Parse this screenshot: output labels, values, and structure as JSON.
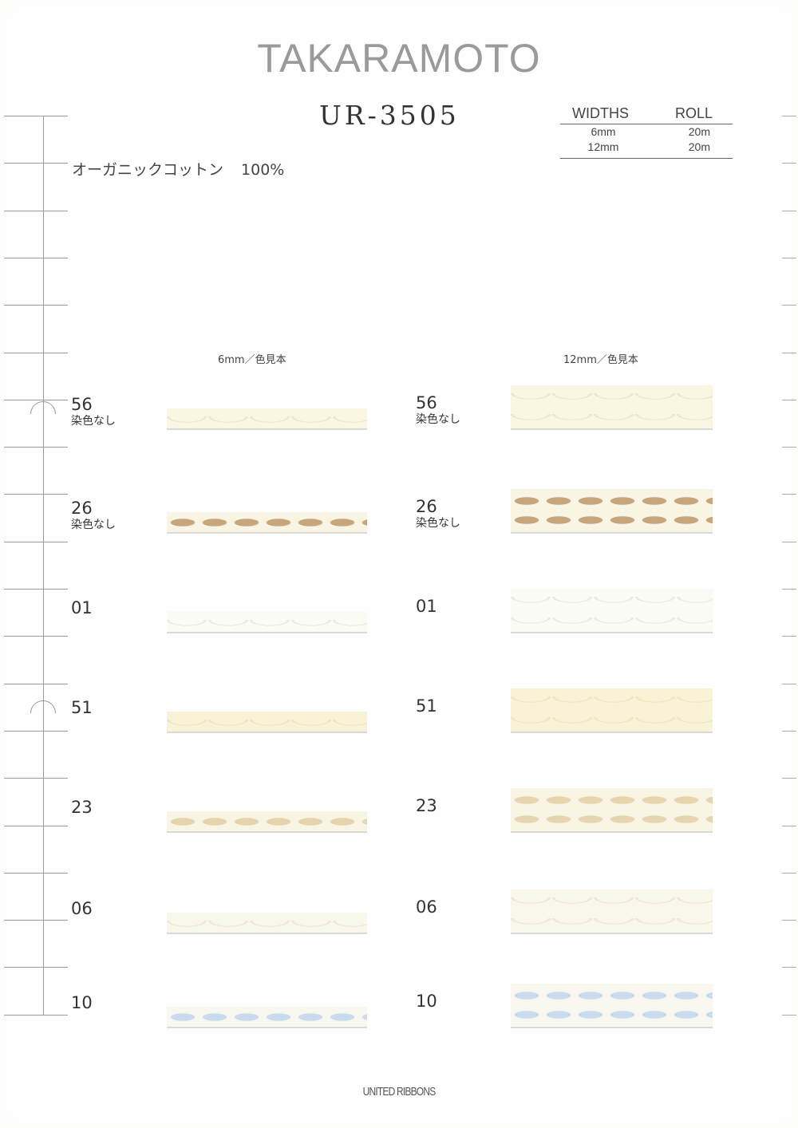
{
  "brand": "TAKARAMOTO",
  "model": "UR-3505",
  "material": {
    "name": "オーガニックコットン",
    "percent": "100%"
  },
  "spec_table": {
    "headers": [
      "WIDTHS",
      "ROLL"
    ],
    "rows": [
      [
        "6mm",
        "20m"
      ],
      [
        "12mm",
        "20m"
      ]
    ]
  },
  "columns": {
    "narrow": "6mm／色見本",
    "wide": "12mm／色見本"
  },
  "swatches": [
    {
      "code": "56",
      "note": "染色なし",
      "pattern": "scallop",
      "base": "#faf6e2",
      "accent": "#e9e2c4"
    },
    {
      "code": "26",
      "note": "染色なし",
      "pattern": "dots",
      "base": "#f9f5e4",
      "accent": "#c8a67c"
    },
    {
      "code": "01",
      "note": "",
      "pattern": "scallop",
      "base": "#fbfbf5",
      "accent": "#e5e5dc"
    },
    {
      "code": "51",
      "note": "",
      "pattern": "scallop",
      "base": "#f8f3d6",
      "accent": "#ebe3bb"
    },
    {
      "code": "23",
      "note": "",
      "pattern": "dots",
      "base": "#f9f5e4",
      "accent": "#e6d4ae"
    },
    {
      "code": "06",
      "note": "",
      "pattern": "scallop",
      "base": "#f9f7ea",
      "accent": "#e6e3d2"
    },
    {
      "code": "10",
      "note": "",
      "pattern": "dots",
      "base": "#f9f8f0",
      "accent": "#c9dcef"
    }
  ],
  "footer": "UNITED RIBBONS"
}
